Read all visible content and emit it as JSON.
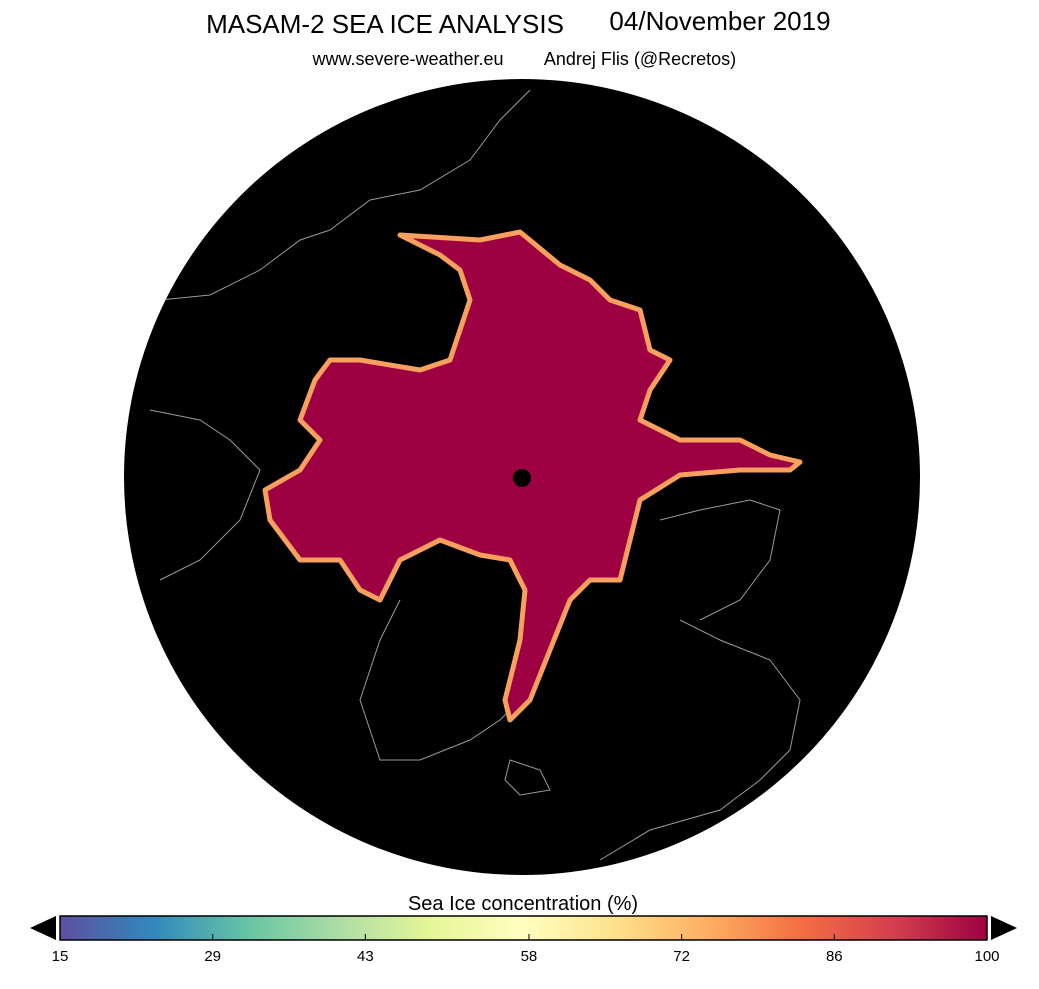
{
  "header": {
    "title": "MASAM-2 SEA ICE ANALYSIS",
    "date": "04/November 2019",
    "site": "www.severe-weather.eu",
    "author": "Andrej Flis (@Recretos)"
  },
  "colorbar": {
    "label": "Sea Ice concentration (%)",
    "range": [
      15,
      100
    ],
    "ticks": [
      15,
      29,
      43,
      58,
      72,
      86,
      100
    ],
    "colors": [
      "#5e4fa2",
      "#3288bd",
      "#66c2a5",
      "#abdda4",
      "#e6f598",
      "#ffffbf",
      "#fee08b",
      "#fdae61",
      "#f46d43",
      "#d53e4f",
      "#9e0142"
    ]
  }
}
